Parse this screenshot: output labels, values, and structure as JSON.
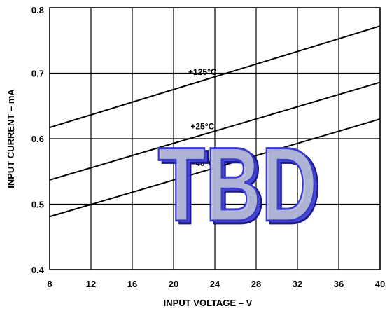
{
  "chart_data": {
    "type": "line",
    "title": "",
    "xlabel": "INPUT VOLTAGE – V",
    "ylabel": "INPUT CURRENT – mA",
    "xlim": [
      8,
      40
    ],
    "ylim": [
      0.4,
      0.8
    ],
    "xticks": [
      8,
      12,
      16,
      20,
      24,
      28,
      32,
      36,
      40
    ],
    "yticks": [
      0.4,
      0.5,
      0.6,
      0.7,
      0.8
    ],
    "xtick_labels": [
      "8",
      "12",
      "16",
      "20",
      "24",
      "28",
      "32",
      "36",
      "40"
    ],
    "ytick_labels": [
      "0.4",
      "0.5",
      "0.6",
      "0.7",
      "0.8"
    ],
    "grid": true,
    "series": [
      {
        "name": "+125°C",
        "x": [
          8,
          40
        ],
        "y": [
          0.617,
          0.772
        ]
      },
      {
        "name": "+25°C",
        "x": [
          8,
          40
        ],
        "y": [
          0.537,
          0.686
        ]
      },
      {
        "name": "–40°C",
        "x": [
          8,
          40
        ],
        "y": [
          0.481,
          0.63
        ]
      }
    ],
    "watermark": {
      "text": "TBD",
      "color": "#3a3ad0",
      "fill": "#b8bdd8"
    }
  }
}
